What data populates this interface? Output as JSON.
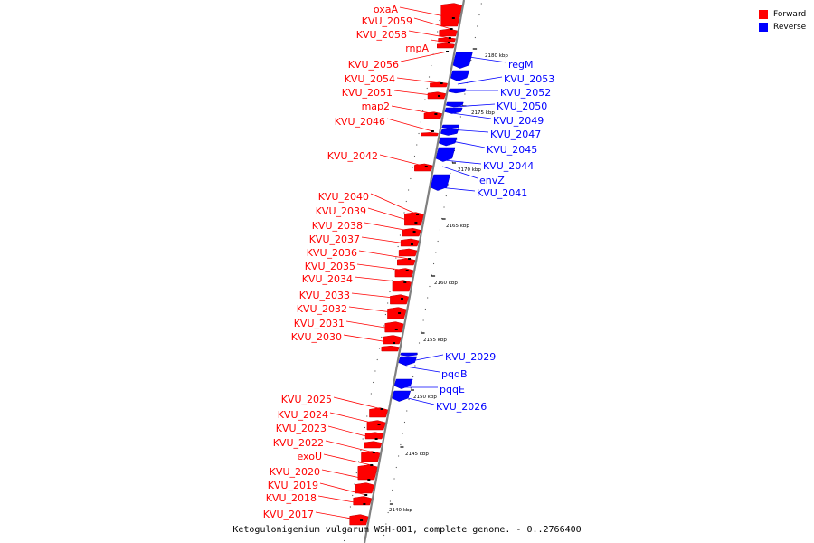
{
  "legend": [
    {
      "label": "Forward",
      "color": "#ff0000"
    },
    {
      "label": "Reverse",
      "color": "#0000ff"
    }
  ],
  "caption": "Ketogulonigenium vulgarum WSH-001, complete genome. - 0..2766400",
  "colors": {
    "forward": "#ff0000",
    "reverse": "#0000ff",
    "backbone": "#808080",
    "tick": "#000000"
  },
  "ticks": [
    {
      "label": "2140 kbp"
    },
    {
      "label": "2145 kbp"
    },
    {
      "label": "2150 kbp"
    },
    {
      "label": "2155 kbp"
    },
    {
      "label": "2160 kbp"
    },
    {
      "label": "2165 kbp"
    },
    {
      "label": "2170 kbp"
    },
    {
      "label": "2175 kbp"
    },
    {
      "label": "2180 kbp"
    }
  ],
  "forward_genes": [
    {
      "label": "oxaA"
    },
    {
      "label": "KVU_2059"
    },
    {
      "label": "KVU_2058"
    },
    {
      "label": "rnpA"
    },
    {
      "label": "KVU_2056"
    },
    {
      "label": "KVU_2054"
    },
    {
      "label": "KVU_2051"
    },
    {
      "label": "map2"
    },
    {
      "label": "KVU_2046"
    },
    {
      "label": "KVU_2042"
    },
    {
      "label": "KVU_2040"
    },
    {
      "label": "KVU_2039"
    },
    {
      "label": "KVU_2038"
    },
    {
      "label": "KVU_2037"
    },
    {
      "label": "KVU_2036"
    },
    {
      "label": "KVU_2035"
    },
    {
      "label": "KVU_2034"
    },
    {
      "label": "KVU_2033"
    },
    {
      "label": "KVU_2032"
    },
    {
      "label": "KVU_2031"
    },
    {
      "label": "KVU_2030"
    },
    {
      "label": "KVU_2025"
    },
    {
      "label": "KVU_2024"
    },
    {
      "label": "KVU_2023"
    },
    {
      "label": "KVU_2022"
    },
    {
      "label": "exoU"
    },
    {
      "label": "KVU_2020"
    },
    {
      "label": "KVU_2019"
    },
    {
      "label": "KVU_2018"
    },
    {
      "label": "KVU_2017"
    }
  ],
  "reverse_genes": [
    {
      "label": "regM"
    },
    {
      "label": "KVU_2053"
    },
    {
      "label": "KVU_2052"
    },
    {
      "label": "KVU_2050"
    },
    {
      "label": "KVU_2049"
    },
    {
      "label": "KVU_2047"
    },
    {
      "label": "KVU_2045"
    },
    {
      "label": "KVU_2044"
    },
    {
      "label": "envZ"
    },
    {
      "label": "KVU_2041"
    },
    {
      "label": "KVU_2029"
    },
    {
      "label": "pqqB"
    },
    {
      "label": "pqqE"
    },
    {
      "label": "KVU_2026"
    }
  ]
}
